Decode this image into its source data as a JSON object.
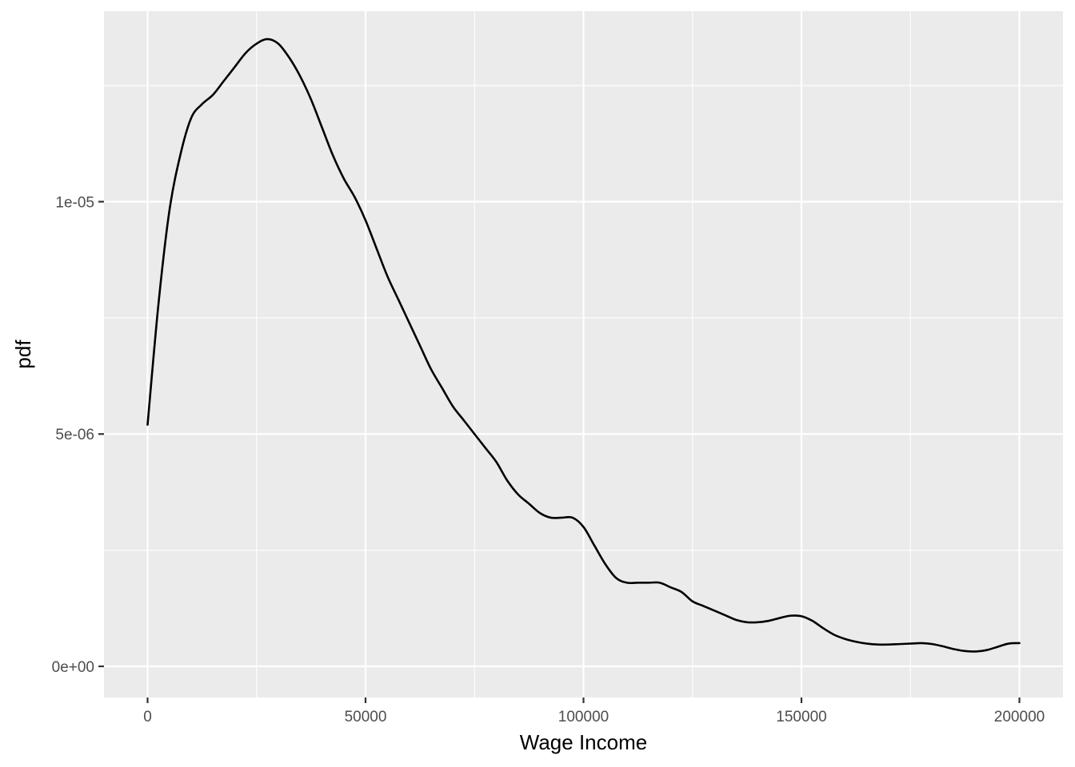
{
  "chart_data": {
    "type": "line",
    "title": "",
    "xlabel": "Wage Income",
    "ylabel": "pdf",
    "xlim": [
      -10000,
      210000
    ],
    "ylim": [
      -6.7e-07,
      1.41e-05
    ],
    "x_ticks": [
      {
        "value": 0,
        "label": "0"
      },
      {
        "value": 50000,
        "label": "50000"
      },
      {
        "value": 100000,
        "label": "100000"
      },
      {
        "value": 150000,
        "label": "150000"
      },
      {
        "value": 200000,
        "label": "200000"
      }
    ],
    "x_minor_ticks": [
      25000,
      75000,
      125000,
      175000
    ],
    "y_ticks": [
      {
        "value": 0,
        "label": "0e+00"
      },
      {
        "value": 5e-06,
        "label": "5e-06"
      },
      {
        "value": 1e-05,
        "label": "1e-05"
      }
    ],
    "y_minor_ticks": [
      2.5e-06,
      7.5e-06,
      1.25e-05
    ],
    "grid": true,
    "series": [
      {
        "x": [
          0,
          2500,
          5000,
          7500,
          10000,
          12500,
          15000,
          17500,
          20000,
          22500,
          25000,
          27500,
          30000,
          32500,
          35000,
          37500,
          40000,
          42500,
          45000,
          47500,
          50000,
          52500,
          55000,
          57500,
          60000,
          62500,
          65000,
          67500,
          70000,
          72500,
          75000,
          77500,
          80000,
          82500,
          85000,
          87500,
          90000,
          92500,
          95000,
          97500,
          100000,
          102500,
          105000,
          107500,
          110000,
          112500,
          115000,
          117500,
          120000,
          122500,
          125000,
          127500,
          130000,
          132500,
          135000,
          137500,
          140000,
          142500,
          145000,
          147500,
          150000,
          152500,
          155000,
          157500,
          160000,
          162500,
          165000,
          167500,
          170000,
          172500,
          175000,
          177500,
          180000,
          182500,
          185000,
          187500,
          190000,
          192500,
          195000,
          197500,
          200000
        ],
        "y": [
          5.2e-06,
          7.8e-06,
          9.8e-06,
          1.1e-05,
          1.18e-05,
          1.21e-05,
          1.23e-05,
          1.26e-05,
          1.29e-05,
          1.32e-05,
          1.34e-05,
          1.35e-05,
          1.34e-05,
          1.31e-05,
          1.27e-05,
          1.22e-05,
          1.16e-05,
          1.1e-05,
          1.05e-05,
          1.01e-05,
          9.6e-06,
          9e-06,
          8.4e-06,
          7.9e-06,
          7.4e-06,
          6.9e-06,
          6.4e-06,
          6e-06,
          5.6e-06,
          5.3e-06,
          5e-06,
          4.7e-06,
          4.4e-06,
          4e-06,
          3.7e-06,
          3.5e-06,
          3.3e-06,
          3.2e-06,
          3.2e-06,
          3.2e-06,
          3e-06,
          2.6e-06,
          2.2e-06,
          1.9e-06,
          1.8e-06,
          1.8e-06,
          1.8e-06,
          1.8e-06,
          1.7e-06,
          1.6e-06,
          1.4e-06,
          1.3e-06,
          1.2e-06,
          1.1e-06,
          1e-06,
          9.5e-07,
          9.5e-07,
          9.8e-07,
          1.04e-06,
          1.09e-06,
          1.08e-06,
          9.8e-07,
          8.2e-07,
          6.8e-07,
          5.9e-07,
          5.3e-07,
          4.9e-07,
          4.7e-07,
          4.7e-07,
          4.8e-07,
          4.9e-07,
          5e-07,
          4.8e-07,
          4.3e-07,
          3.7e-07,
          3.3e-07,
          3.2e-07,
          3.5e-07,
          4.2e-07,
          4.9e-07,
          5e-07
        ]
      }
    ]
  },
  "colors": {
    "panel_background": "#ebebeb",
    "grid_major": "#ffffff",
    "line": "#000000",
    "tick_text": "#4d4d4d",
    "axis_title": "#000000"
  }
}
